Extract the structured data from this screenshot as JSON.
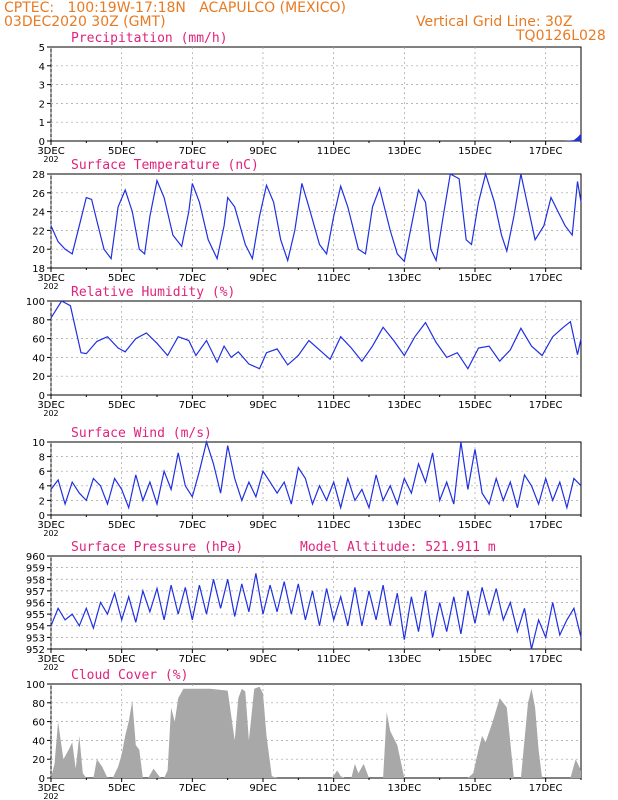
{
  "header": {
    "line1": "CPTEC:   100:19W-17:18N   ACAPULCO (MEXICO)",
    "line2": "03DEC2020 30Z (GMT)",
    "grid_note": "Vertical Grid Line: 30Z",
    "code": "TQ0126L028"
  },
  "colors": {
    "header": "#e87a22",
    "title": "#e0237d",
    "line": "#2030e0",
    "area": "#a8a8a8",
    "grid": "#a0a0a0"
  },
  "x_ticks": [
    "3DEC",
    "5DEC",
    "7DEC",
    "9DEC",
    "11DEC",
    "13DEC",
    "15DEC",
    "17DEC"
  ],
  "x_sub": "202",
  "chart_data": [
    {
      "id": "precip",
      "type": "area",
      "title": "Precipitation (mm/h)",
      "ylim": [
        0,
        5
      ],
      "yticks": [
        "0",
        "1",
        "2",
        "3",
        "4",
        "5"
      ],
      "x": [
        3.0,
        17.5,
        17.8,
        17.9,
        18.0
      ],
      "values": [
        0,
        0,
        0.05,
        0.2,
        0.4
      ]
    },
    {
      "id": "temp",
      "type": "line",
      "title": "Surface Temperature (nC)",
      "ylim": [
        18,
        28
      ],
      "yticks": [
        "18",
        "20",
        "22",
        "24",
        "26",
        "28"
      ],
      "x": [
        3.0,
        3.2,
        3.4,
        3.6,
        3.8,
        4.0,
        4.15,
        4.3,
        4.5,
        4.7,
        4.9,
        5.1,
        5.3,
        5.5,
        5.65,
        5.8,
        6.0,
        6.2,
        6.45,
        6.7,
        6.9,
        7.0,
        7.2,
        7.45,
        7.7,
        7.9,
        8.0,
        8.2,
        8.5,
        8.7,
        8.9,
        9.1,
        9.3,
        9.5,
        9.7,
        9.9,
        10.1,
        10.3,
        10.6,
        10.8,
        11.0,
        11.2,
        11.4,
        11.7,
        11.9,
        12.1,
        12.3,
        12.6,
        12.8,
        13.0,
        13.2,
        13.4,
        13.6,
        13.75,
        13.9,
        14.1,
        14.3,
        14.55,
        14.75,
        14.9,
        15.1,
        15.3,
        15.55,
        15.75,
        15.9,
        16.1,
        16.3,
        16.5,
        16.7,
        16.95,
        17.15,
        17.35,
        17.55,
        17.75,
        17.9,
        18.0
      ],
      "values": [
        22.5,
        20.8,
        20.0,
        19.5,
        22.5,
        25.5,
        25.3,
        23.0,
        20.0,
        19.0,
        24.5,
        26.3,
        24.0,
        20.0,
        19.5,
        23.5,
        27.3,
        25.5,
        21.5,
        20.3,
        24.0,
        27.0,
        25.0,
        21.0,
        19.0,
        22.5,
        25.5,
        24.5,
        20.5,
        19.0,
        23.5,
        26.8,
        25.0,
        21.0,
        18.8,
        22.0,
        27.0,
        24.5,
        20.5,
        19.5,
        23.5,
        26.7,
        24.5,
        20.0,
        19.5,
        24.5,
        26.5,
        22.0,
        19.5,
        18.7,
        22.5,
        26.3,
        25.0,
        20.0,
        18.8,
        23.5,
        28.0,
        27.5,
        21.0,
        20.5,
        25.0,
        28.0,
        25.0,
        21.5,
        19.8,
        23.5,
        28.0,
        24.5,
        21.0,
        22.5,
        25.5,
        24.0,
        22.5,
        21.5,
        27.2,
        25.0
      ]
    },
    {
      "id": "rh",
      "type": "line",
      "title": "Relative Humidity (%)",
      "ylim": [
        0,
        100
      ],
      "yticks": [
        "0",
        "20",
        "40",
        "60",
        "80",
        "100"
      ],
      "x": [
        3.0,
        3.3,
        3.55,
        3.7,
        3.85,
        4.0,
        4.3,
        4.6,
        4.9,
        5.1,
        5.4,
        5.7,
        6.0,
        6.3,
        6.6,
        6.9,
        7.1,
        7.4,
        7.7,
        7.9,
        8.1,
        8.3,
        8.6,
        8.9,
        9.1,
        9.4,
        9.7,
        10.0,
        10.3,
        10.6,
        10.9,
        11.2,
        11.5,
        11.8,
        12.1,
        12.4,
        12.7,
        13.0,
        13.3,
        13.6,
        13.9,
        14.2,
        14.5,
        14.8,
        15.1,
        15.4,
        15.7,
        16.0,
        16.3,
        16.6,
        16.9,
        17.2,
        17.5,
        17.7,
        17.9,
        18.0
      ],
      "values": [
        82,
        100,
        95,
        70,
        45,
        44,
        57,
        62,
        50,
        46,
        60,
        66,
        55,
        42,
        62,
        58,
        42,
        58,
        35,
        52,
        40,
        46,
        33,
        28,
        45,
        49,
        32,
        42,
        58,
        48,
        38,
        62,
        50,
        36,
        52,
        72,
        58,
        42,
        62,
        77,
        56,
        40,
        45,
        28,
        50,
        52,
        36,
        48,
        71,
        52,
        42,
        62,
        72,
        78,
        43,
        60
      ]
    },
    {
      "id": "wind",
      "type": "line",
      "title": "Surface Wind (m/s)",
      "ylim": [
        0,
        10
      ],
      "yticks": [
        "0",
        "2",
        "4",
        "6",
        "8",
        "10"
      ],
      "x": [
        3.0,
        3.2,
        3.4,
        3.6,
        3.8,
        4.0,
        4.2,
        4.4,
        4.6,
        4.8,
        5.0,
        5.2,
        5.4,
        5.6,
        5.8,
        6.0,
        6.2,
        6.4,
        6.6,
        6.8,
        7.0,
        7.2,
        7.4,
        7.6,
        7.8,
        8.0,
        8.2,
        8.4,
        8.6,
        8.8,
        9.0,
        9.2,
        9.4,
        9.6,
        9.8,
        10.0,
        10.2,
        10.4,
        10.6,
        10.8,
        11.0,
        11.2,
        11.4,
        11.6,
        11.8,
        12.0,
        12.2,
        12.4,
        12.6,
        12.8,
        13.0,
        13.2,
        13.4,
        13.6,
        13.8,
        14.0,
        14.2,
        14.4,
        14.6,
        14.8,
        15.0,
        15.2,
        15.4,
        15.6,
        15.8,
        16.0,
        16.2,
        16.4,
        16.6,
        16.8,
        17.0,
        17.2,
        17.4,
        17.6,
        17.8,
        18.0
      ],
      "values": [
        3.5,
        4.8,
        1.5,
        4.5,
        3.0,
        2.0,
        5.0,
        4.0,
        1.5,
        5.0,
        3.5,
        1.0,
        5.5,
        2.0,
        4.5,
        1.5,
        6.0,
        3.5,
        8.5,
        4.0,
        2.5,
        6.0,
        10.5,
        7.0,
        3.0,
        9.5,
        5.0,
        2.0,
        4.5,
        2.5,
        6.0,
        4.5,
        3.0,
        4.5,
        1.5,
        6.5,
        5.0,
        1.5,
        4.0,
        2.0,
        4.5,
        1.0,
        5.0,
        2.0,
        3.5,
        1.0,
        5.5,
        2.0,
        4.0,
        1.5,
        5.0,
        3.0,
        7.0,
        4.5,
        8.5,
        2.0,
        4.5,
        1.5,
        10.5,
        3.5,
        9.0,
        3.0,
        1.5,
        5.0,
        2.0,
        4.5,
        1.0,
        5.5,
        4.0,
        1.5,
        5.0,
        2.0,
        4.5,
        1.0,
        5.0,
        4.0
      ]
    },
    {
      "id": "pres",
      "type": "line",
      "title": "Surface Pressure (hPa)",
      "note": "Model Altitude: 521.911 m",
      "ylim": [
        952,
        960
      ],
      "yticks": [
        "952",
        "953",
        "954",
        "955",
        "956",
        "957",
        "958",
        "959",
        "960"
      ],
      "x": [
        3.0,
        3.2,
        3.4,
        3.6,
        3.8,
        4.0,
        4.2,
        4.4,
        4.6,
        4.8,
        5.0,
        5.2,
        5.4,
        5.6,
        5.8,
        6.0,
        6.2,
        6.4,
        6.6,
        6.8,
        7.0,
        7.2,
        7.4,
        7.6,
        7.8,
        8.0,
        8.2,
        8.4,
        8.6,
        8.8,
        9.0,
        9.2,
        9.4,
        9.6,
        9.8,
        10.0,
        10.2,
        10.4,
        10.6,
        10.8,
        11.0,
        11.2,
        11.4,
        11.6,
        11.8,
        12.0,
        12.2,
        12.4,
        12.6,
        12.8,
        13.0,
        13.2,
        13.4,
        13.6,
        13.8,
        14.0,
        14.2,
        14.4,
        14.6,
        14.8,
        15.0,
        15.2,
        15.4,
        15.6,
        15.8,
        16.0,
        16.2,
        16.4,
        16.6,
        16.8,
        17.0,
        17.2,
        17.4,
        17.6,
        17.8,
        18.0
      ],
      "values": [
        954.0,
        955.5,
        954.5,
        955.0,
        954.0,
        955.5,
        953.8,
        956.0,
        955.0,
        956.8,
        954.5,
        956.5,
        954.3,
        957.0,
        955.2,
        957.2,
        954.5,
        957.5,
        955.0,
        957.3,
        954.5,
        957.5,
        955.0,
        958.0,
        955.5,
        958.0,
        954.8,
        957.6,
        955.2,
        958.5,
        955.0,
        957.5,
        955.2,
        957.8,
        955.0,
        957.6,
        954.5,
        957.0,
        954.0,
        957.2,
        954.5,
        956.5,
        954.0,
        957.3,
        954.0,
        957.0,
        954.5,
        957.5,
        954.0,
        956.8,
        952.8,
        956.5,
        953.5,
        957.0,
        953.0,
        956.0,
        953.5,
        956.5,
        953.3,
        957.0,
        954.2,
        957.3,
        955.0,
        957.2,
        954.5,
        956.0,
        953.5,
        955.5,
        952.0,
        954.5,
        953.0,
        956.0,
        953.2,
        954.5,
        955.5,
        953.0
      ]
    },
    {
      "id": "cloud",
      "type": "area",
      "title": "Cloud Cover (%)",
      "ylim": [
        0,
        100
      ],
      "yticks": [
        "0",
        "20",
        "40",
        "60",
        "80",
        "100"
      ],
      "x": [
        3.0,
        3.1,
        3.2,
        3.35,
        3.5,
        3.6,
        3.7,
        3.8,
        3.9,
        4.0,
        4.1,
        4.2,
        4.3,
        4.45,
        4.6,
        4.75,
        4.9,
        5.0,
        5.1,
        5.2,
        5.3,
        5.4,
        5.5,
        5.6,
        5.75,
        5.9,
        6.0,
        6.1,
        6.2,
        6.3,
        6.4,
        6.5,
        6.6,
        6.75,
        7.0,
        7.5,
        8.0,
        8.2,
        8.3,
        8.4,
        8.5,
        8.6,
        8.75,
        8.9,
        9.0,
        9.1,
        9.25,
        9.4,
        9.6,
        9.8,
        10.0,
        10.2,
        10.4,
        10.6,
        10.8,
        10.95,
        11.1,
        11.2,
        11.3,
        11.5,
        11.6,
        11.7,
        11.85,
        12.0,
        12.2,
        12.4,
        12.5,
        12.6,
        12.8,
        13.0,
        13.1,
        13.25,
        13.4,
        13.6,
        13.8,
        14.0,
        14.2,
        14.4,
        14.6,
        14.8,
        14.95,
        15.1,
        15.2,
        15.3,
        15.5,
        15.7,
        15.9,
        16.1,
        16.3,
        16.5,
        16.6,
        16.7,
        16.8,
        16.9,
        17.0,
        17.15,
        17.3,
        17.5,
        17.7,
        17.85,
        18.0
      ],
      "values": [
        0,
        15,
        60,
        20,
        30,
        38,
        10,
        45,
        5,
        0,
        0,
        0,
        20,
        12,
        0,
        0,
        12,
        25,
        45,
        60,
        82,
        35,
        30,
        0,
        0,
        10,
        5,
        0,
        0,
        8,
        75,
        60,
        85,
        95,
        95,
        95,
        93,
        40,
        85,
        95,
        92,
        40,
        95,
        97,
        90,
        45,
        2,
        0,
        0,
        0,
        0,
        0,
        0,
        0,
        0,
        0,
        8,
        2,
        0,
        0,
        15,
        5,
        15,
        0,
        0,
        0,
        70,
        50,
        35,
        0,
        0,
        0,
        0,
        0,
        0,
        0,
        0,
        0,
        0,
        0,
        5,
        30,
        45,
        38,
        60,
        85,
        75,
        0,
        0,
        80,
        95,
        75,
        30,
        0,
        0,
        0,
        0,
        0,
        0,
        20,
        8
      ]
    }
  ]
}
